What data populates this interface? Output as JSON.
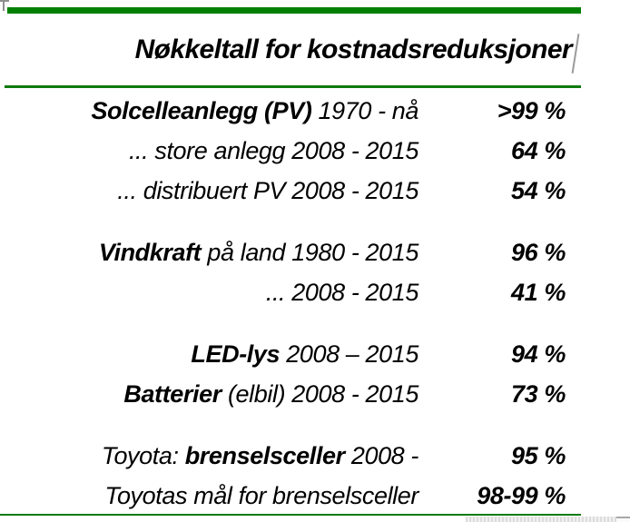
{
  "header": {
    "title": "Nøkkeltall for kostnadsreduksjoner"
  },
  "table": {
    "rows": [
      {
        "pre": "",
        "bold": "Solcelleanlegg (PV)",
        "post": " 1970 - nå",
        "value": ">99 %",
        "gap_before": false
      },
      {
        "pre": "... store anlegg 2008 - 2015",
        "bold": "",
        "post": "",
        "value": "64 %",
        "gap_before": false
      },
      {
        "pre": "... distribuert PV 2008 - 2015",
        "bold": "",
        "post": "",
        "value": "54 %",
        "gap_before": false
      },
      {
        "pre": "",
        "bold": "Vindkraft",
        "post": " på land 1980 - 2015",
        "value": "96 %",
        "gap_before": true
      },
      {
        "pre": "... 2008 - 2015",
        "bold": "",
        "post": "",
        "value": "41 %",
        "gap_before": false
      },
      {
        "pre": "",
        "bold": "LED-lys",
        "post": " 2008 – 2015",
        "value": "94 %",
        "gap_before": true
      },
      {
        "pre": "",
        "bold": "Batterier",
        "post": " (elbil) 2008 - 2015",
        "value": "73 %",
        "gap_before": false
      },
      {
        "pre": "Toyota: ",
        "bold": "brenselsceller",
        "post": " 2008 -",
        "value": "95 %",
        "gap_before": true
      },
      {
        "pre": "Toyotas mål for brenselsceller",
        "bold": "",
        "post": "",
        "value": "98-99 %",
        "gap_before": false
      }
    ]
  },
  "colors": {
    "accent_green_bar": "#008000",
    "rule_green": "#0e7a0e",
    "text": "#000000"
  }
}
